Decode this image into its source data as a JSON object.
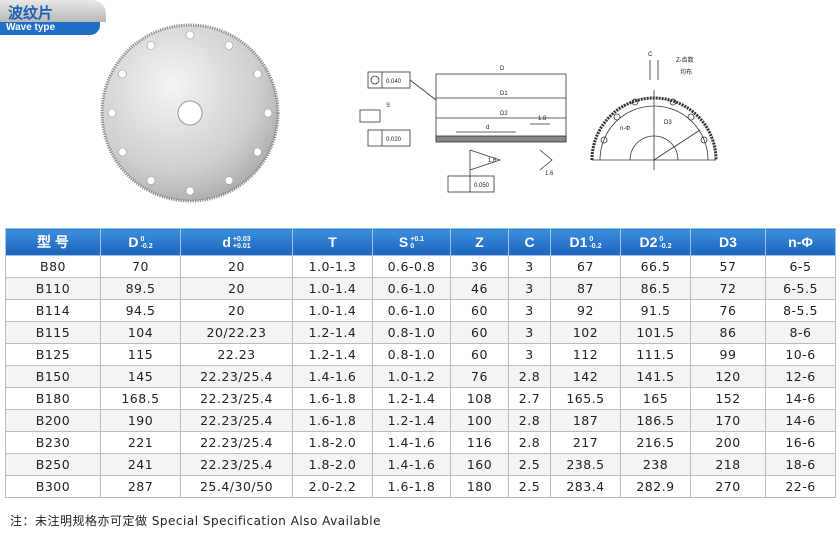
{
  "header": {
    "title": "波纹片",
    "subtitle": "Wave type"
  },
  "drawing_left": {
    "labels": [
      "0.040",
      "S",
      "0.020",
      "D",
      "D1",
      "D2",
      "d",
      "1.8",
      "1.6",
      "1.6",
      "0.050"
    ]
  },
  "drawing_right": {
    "labels": [
      "C",
      "Z-齿数",
      "均布",
      "n-Φ",
      "D3"
    ]
  },
  "table": {
    "columns": [
      {
        "text": "型 号"
      },
      {
        "text": "D",
        "upper": "0",
        "lower": "-0.2"
      },
      {
        "text": "d",
        "upper": "+0.03",
        "lower": "+0.01"
      },
      {
        "text": "T"
      },
      {
        "text": "S",
        "upper": "+0.1",
        "lower": "0"
      },
      {
        "text": "Z"
      },
      {
        "text": "C"
      },
      {
        "text": "D1",
        "upper": "0",
        "lower": "-0.2"
      },
      {
        "text": "D2",
        "upper": "0",
        "lower": "-0.2"
      },
      {
        "text": "D3"
      },
      {
        "text": "n-Φ"
      }
    ],
    "rows": [
      [
        "B80",
        "70",
        "20",
        "1.0-1.3",
        "0.6-0.8",
        "36",
        "3",
        "67",
        "66.5",
        "57",
        "6-5"
      ],
      [
        "B110",
        "89.5",
        "20",
        "1.0-1.4",
        "0.6-1.0",
        "46",
        "3",
        "87",
        "86.5",
        "72",
        "6-5.5"
      ],
      [
        "B114",
        "94.5",
        "20",
        "1.0-1.4",
        "0.6-1.0",
        "60",
        "3",
        "92",
        "91.5",
        "76",
        "8-5.5"
      ],
      [
        "B115",
        "104",
        "20/22.23",
        "1.2-1.4",
        "0.8-1.0",
        "60",
        "3",
        "102",
        "101.5",
        "86",
        "8-6"
      ],
      [
        "B125",
        "115",
        "22.23",
        "1.2-1.4",
        "0.8-1.0",
        "60",
        "3",
        "112",
        "111.5",
        "99",
        "10-6"
      ],
      [
        "B150",
        "145",
        "22.23/25.4",
        "1.4-1.6",
        "1.0-1.2",
        "76",
        "2.8",
        "142",
        "141.5",
        "120",
        "12-6"
      ],
      [
        "B180",
        "168.5",
        "22.23/25.4",
        "1.6-1.8",
        "1.2-1.4",
        "108",
        "2.7",
        "165.5",
        "165",
        "152",
        "14-6"
      ],
      [
        "B200",
        "190",
        "22.23/25.4",
        "1.6-1.8",
        "1.2-1.4",
        "100",
        "2.8",
        "187",
        "186.5",
        "170",
        "14-6"
      ],
      [
        "B230",
        "221",
        "22.23/25.4",
        "1.8-2.0",
        "1.4-1.6",
        "116",
        "2.8",
        "217",
        "216.5",
        "200",
        "16-6"
      ],
      [
        "B250",
        "241",
        "22.23/25.4",
        "1.8-2.0",
        "1.4-1.6",
        "160",
        "2.5",
        "238.5",
        "238",
        "218",
        "18-6"
      ],
      [
        "B300",
        "287",
        "25.4/30/50",
        "2.0-2.2",
        "1.6-1.8",
        "180",
        "2.5",
        "283.4",
        "282.9",
        "270",
        "22-6"
      ]
    ]
  },
  "footnote": "注：未注明规格亦可定做 Special Specification Also Available"
}
